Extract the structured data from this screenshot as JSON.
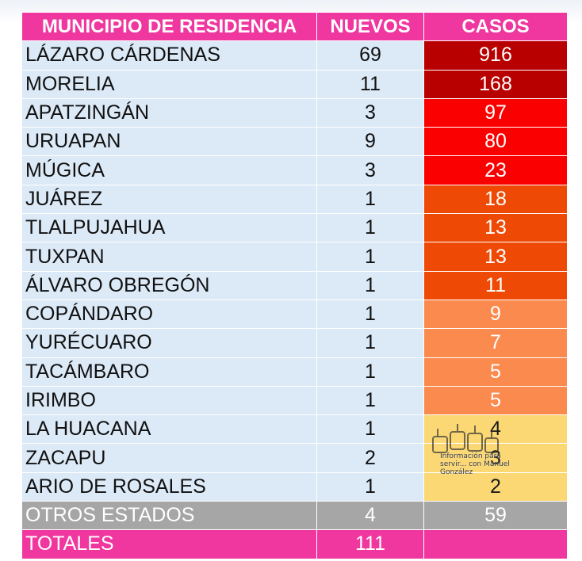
{
  "headers": {
    "municipio": "MUNICIPIO DE RESIDENCIA",
    "nuevos": "NUEVOS",
    "casos": "CASOS"
  },
  "rows": [
    {
      "municipio": "LÁZARO CÁRDENAS",
      "nuevos": "69",
      "casos": "916",
      "color": "#b80000"
    },
    {
      "municipio": "MORELIA",
      "nuevos": "11",
      "casos": "168",
      "color": "#b80000"
    },
    {
      "municipio": "APATZINGÁN",
      "nuevos": "3",
      "casos": "97",
      "color": "#fb0000"
    },
    {
      "municipio": "URUAPAN",
      "nuevos": "9",
      "casos": "80",
      "color": "#fb0000"
    },
    {
      "municipio": "MÚGICA",
      "nuevos": "3",
      "casos": "23",
      "color": "#fb0000"
    },
    {
      "municipio": "JUÁREZ",
      "nuevos": "1",
      "casos": "18",
      "color": "#ee4a06"
    },
    {
      "municipio": "TLALPUJAHUA",
      "nuevos": "1",
      "casos": "13",
      "color": "#ee4a06"
    },
    {
      "municipio": "TUXPAN",
      "nuevos": "1",
      "casos": "13",
      "color": "#ee4a06"
    },
    {
      "municipio": "ÁLVARO OBREGÓN",
      "nuevos": "1",
      "casos": "11",
      "color": "#ee4a06"
    },
    {
      "municipio": "COPÁNDARO",
      "nuevos": "1",
      "casos": "9",
      "color": "#fb8a4e"
    },
    {
      "municipio": "YURÉCUARO",
      "nuevos": "1",
      "casos": "7",
      "color": "#fb8a4e"
    },
    {
      "municipio": "TACÁMBARO",
      "nuevos": "1",
      "casos": "5",
      "color": "#fb8a4e"
    },
    {
      "municipio": "IRIMBO",
      "nuevos": "1",
      "casos": "5",
      "color": "#fb8a4e"
    },
    {
      "municipio": "LA HUACANA",
      "nuevos": "1",
      "casos": "4",
      "color": "#fbd874"
    },
    {
      "municipio": "ZACAPU",
      "nuevos": "2",
      "casos": "3",
      "color": "#fbd874"
    },
    {
      "municipio": "ARIO DE ROSALES",
      "nuevos": "1",
      "casos": "2",
      "color": "#fbd874"
    }
  ],
  "otros": {
    "municipio": "OTROS ESTADOS",
    "nuevos": "4",
    "casos": "59"
  },
  "totales": {
    "municipio": "TOTALES",
    "nuevos": "111",
    "casos": ""
  },
  "watermark": {
    "text": "Información para servir... con Manuel González"
  }
}
